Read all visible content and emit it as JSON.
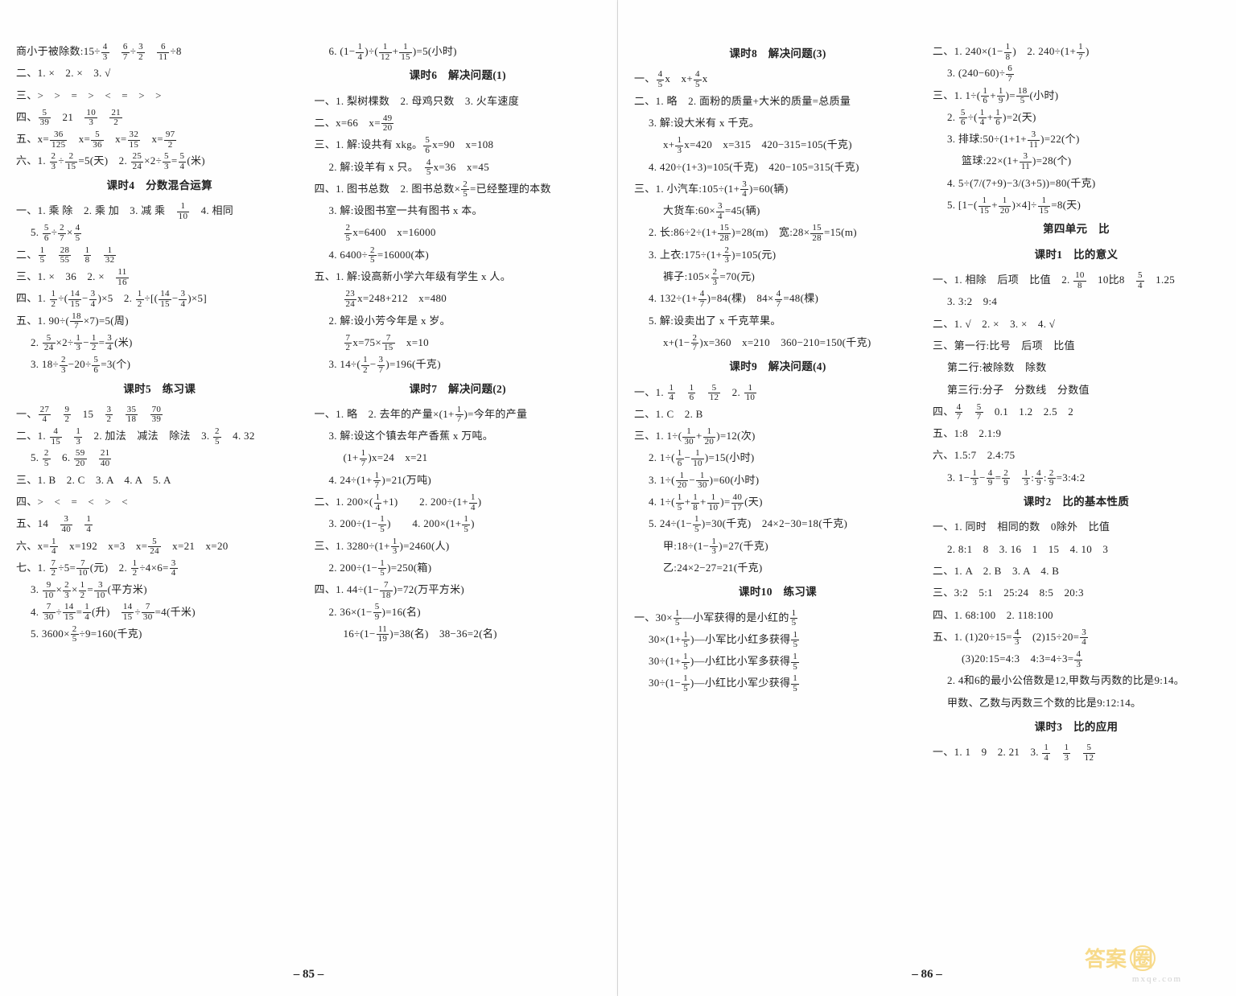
{
  "pageLeft": {
    "number": "– 85 –"
  },
  "pageRight": {
    "number": "– 86 –"
  },
  "watermark": {
    "brand": "答案",
    "circle": "圈",
    "url": "mxqe.com"
  },
  "col1": [
    {
      "t": "商小于被除数:15÷4/3　6/7÷3/2　6/11÷8"
    },
    {
      "t": "二、1. ×　2. ×　3. √"
    },
    {
      "t": "三、>　>　=　>　<　=　>　>"
    },
    {
      "t": "四、5/39　21　10/3　21/2"
    },
    {
      "t": "五、x=36/125　x=5/36　x=32/15　x=97/2"
    },
    {
      "t": "六、1. 2/3÷2/15=5(天)　2. 25/24×2÷5/3=5/4(米)"
    },
    {
      "t": "课时4　分数混合运算",
      "c": true
    },
    {
      "t": "一、1. 乘 除　2. 乘 加　3. 减 乘　1/10　4. 相同"
    },
    {
      "t": "5. 5/6÷2/7×4/5",
      "i": 1
    },
    {
      "t": "二、1/5　28/55　1/8　1/32"
    },
    {
      "t": "三、1. ×　36　2. ×　11/16"
    },
    {
      "t": "四、1. 1/2÷(14/15−3/4)×5　2. 1/2÷[(14/15−3/4)×5]"
    },
    {
      "t": "五、1. 90÷(18/7×7)=5(周)"
    },
    {
      "t": "2. 5/24×2÷1/3−1/2=3/4(米)",
      "i": 1
    },
    {
      "t": "3. 18÷2/3−20÷5/6=3(个)",
      "i": 1
    },
    {
      "t": "课时5　练习课",
      "c": true
    },
    {
      "t": "一、27/4　9/2　15　3/2　35/18　70/39"
    },
    {
      "t": "二、1. 4/15　1/3　2. 加法　减法　除法　3. 2/5　4. 32"
    },
    {
      "t": "5. 2/5　6. 59/20　21/40",
      "i": 1
    },
    {
      "t": "三、1. B　2. C　3. A　4. A　5. A"
    },
    {
      "t": "四、>　<　=　<　>　<"
    },
    {
      "t": "五、14　3/40　1/4"
    },
    {
      "t": "六、x=1/4　x=192　x=3　x=5/24　x=21　x=20"
    },
    {
      "t": "七、1. 7/2÷5=7/10(元)　2. 1/2÷4×6=3/4"
    },
    {
      "t": "3. 9/10×2/3×1/2=3/10(平方米)",
      "i": 1
    },
    {
      "t": "4. 7/30÷14/15=1/4(升)　14/15÷7/30=4(千米)",
      "i": 1
    },
    {
      "t": "5. 3600×2/5÷9=160(千克)",
      "i": 1
    }
  ],
  "col2": [
    {
      "t": "6. (1−1/4)÷(1/12+1/15)=5(小时)",
      "i": 1
    },
    {
      "t": "课时6　解决问题(1)",
      "c": true
    },
    {
      "t": "一、1. 梨树棵数　2. 母鸡只数　3. 火车速度"
    },
    {
      "t": "二、x=66　x=49/20"
    },
    {
      "t": "三、1. 解:设共有 xkg。5/6x=90　x=108"
    },
    {
      "t": "2. 解:设羊有 x 只。　4/5x=36　x=45",
      "i": 1
    },
    {
      "t": "四、1. 图书总数　2. 图书总数×2/5=已经整理的本数"
    },
    {
      "t": "3. 解:设图书室一共有图书 x 本。",
      "i": 1
    },
    {
      "t": "2/5x=6400　x=16000",
      "i": 2
    },
    {
      "t": "4. 6400÷2/5=16000(本)",
      "i": 1
    },
    {
      "t": "五、1. 解:设高新小学六年级有学生 x 人。"
    },
    {
      "t": "23/24x=248+212　x=480",
      "i": 2
    },
    {
      "t": "2. 解:设小芳今年是 x 岁。",
      "i": 1
    },
    {
      "t": "7/2x=75×7/15　x=10",
      "i": 2
    },
    {
      "t": "3. 14÷(1/2−3/7)=196(千克)",
      "i": 1
    },
    {
      "t": "课时7　解决问题(2)",
      "c": true
    },
    {
      "t": "一、1. 略　2. 去年的产量×(1+1/7)=今年的产量"
    },
    {
      "t": "3. 解:设这个镇去年产香蕉 x 万吨。",
      "i": 1
    },
    {
      "t": "(1+1/7)x=24　x=21",
      "i": 2
    },
    {
      "t": "4. 24÷(1+1/7)=21(万吨)",
      "i": 1
    },
    {
      "t": "二、1. 200×(1/4+1)　　2. 200÷(1+1/4)"
    },
    {
      "t": "3. 200÷(1−1/5)　　4. 200×(1+1/5)",
      "i": 1
    },
    {
      "t": "三、1. 3280÷(1+1/3)=2460(人)"
    },
    {
      "t": "2. 200÷(1−1/5)=250(箱)",
      "i": 1
    },
    {
      "t": "四、1. 44÷(1−7/18)=72(万平方米)"
    },
    {
      "t": "2. 36×(1−5/9)=16(名)",
      "i": 1
    },
    {
      "t": "16÷(1−11/19)=38(名)　38−36=2(名)",
      "i": 2
    }
  ],
  "col3": [
    {
      "t": "课时8　解决问题(3)",
      "c": true
    },
    {
      "t": "一、4/5x　x+4/5x"
    },
    {
      "t": "二、1. 略　2. 面粉的质量+大米的质量=总质量"
    },
    {
      "t": "3. 解:设大米有 x 千克。",
      "i": 1
    },
    {
      "t": "x+1/3x=420　x=315　420−315=105(千克)",
      "i": 2
    },
    {
      "t": "4. 420÷(1+3)=105(千克)　420−105=315(千克)",
      "i": 1
    },
    {
      "t": "三、1. 小汽车:105÷(1+3/4)=60(辆)"
    },
    {
      "t": "大货车:60×3/4=45(辆)",
      "i": 2
    },
    {
      "t": "2. 长:86÷2÷(1+15/28)=28(m)　宽:28×15/28=15(m)",
      "i": 1
    },
    {
      "t": "3. 上衣:175÷(1+2/3)=105(元)",
      "i": 1
    },
    {
      "t": "裤子:105×2/3=70(元)",
      "i": 2
    },
    {
      "t": "4. 132÷(1+4/7)=84(棵)　84×4/7=48(棵)",
      "i": 1
    },
    {
      "t": "5. 解:设卖出了 x 千克苹果。",
      "i": 1
    },
    {
      "t": "x+(1−2/7)x=360　x=210　360−210=150(千克)",
      "i": 2
    },
    {
      "t": "课时9　解决问题(4)",
      "c": true
    },
    {
      "t": "一、1. 1/4　1/6　5/12　2. 1/10"
    },
    {
      "t": "二、1. C　2. B"
    },
    {
      "t": "三、1. 1÷(1/30+1/20)=12(次)"
    },
    {
      "t": "2. 1÷(1/6−1/10)=15(小时)",
      "i": 1
    },
    {
      "t": "3. 1÷(1/20−1/30)=60(小时)",
      "i": 1
    },
    {
      "t": "4. 1÷(1/5+1/8+1/10)=40/17(天)",
      "i": 1
    },
    {
      "t": "5. 24÷(1−1/5)=30(千克)　24×2−30=18(千克)",
      "i": 1
    },
    {
      "t": "甲:18÷(1−1/3)=27(千克)",
      "i": 2
    },
    {
      "t": "乙:24×2−27=21(千克)",
      "i": 2
    },
    {
      "t": "课时10　练习课",
      "c": true
    },
    {
      "t": "一、30×1/5—小军获得的是小红的1/5"
    },
    {
      "t": "30×(1+1/5)—小军比小红多获得1/5",
      "i": 1
    },
    {
      "t": "30÷(1+1/5)—小红比小军多获得1/5",
      "i": 1
    },
    {
      "t": "30÷(1−1/5)—小红比小军少获得1/5",
      "i": 1
    }
  ],
  "col4": [
    {
      "t": "二、1. 240×(1−1/8)　2. 240÷(1+1/7)"
    },
    {
      "t": "3. (240−60)÷6/7",
      "i": 1
    },
    {
      "t": "三、1. 1÷(1/6+1/9)=18/5(小时)"
    },
    {
      "t": "2. 5/6÷(1/4+1/6)=2(天)",
      "i": 1
    },
    {
      "t": "3. 排球:50÷(1+1+3/11)=22(个)",
      "i": 1
    },
    {
      "t": "篮球:22×(1+3/11)=28(个)",
      "i": 2
    },
    {
      "t": "4. 5÷(7/(7+9)−3/(3+5))=80(千克)",
      "i": 1
    },
    {
      "t": "5. [1−(1/15+1/20)×4]÷1/15=8(天)",
      "i": 1
    },
    {
      "t": "第四单元　比",
      "c": true
    },
    {
      "t": "课时1　比的意义",
      "c": true
    },
    {
      "t": "一、1. 相除　后项　比值　2. 10/8　10比8　5/4　1.25"
    },
    {
      "t": "3. 3:2　9:4",
      "i": 1
    },
    {
      "t": "二、1. √　2. ×　3. ×　4. √"
    },
    {
      "t": "三、第一行:比号　后项　比值"
    },
    {
      "t": "第二行:被除数　除数",
      "i": 1
    },
    {
      "t": "第三行:分子　分数线　分数值",
      "i": 1
    },
    {
      "t": "四、4/7　5/7　0.1　1.2　2.5　2"
    },
    {
      "t": "五、1:8　2.1:9"
    },
    {
      "t": "六、1.5:7　2.4:75"
    },
    {
      "t": "3. 1−1/3−4/9=2/9　1/3:4/9:2/9=3:4:2",
      "i": 1
    },
    {
      "t": "课时2　比的基本性质",
      "c": true
    },
    {
      "t": "一、1. 同时　相同的数　0除外　比值"
    },
    {
      "t": "2. 8:1　8　3. 16　1　15　4. 10　3",
      "i": 1
    },
    {
      "t": "二、1. A　2. B　3. A　4. B"
    },
    {
      "t": "三、3:2　5:1　25:24　8:5　20:3"
    },
    {
      "t": "四、1. 68:100　2. 118:100"
    },
    {
      "t": "五、1. (1)20÷15=4/3　(2)15÷20=3/4"
    },
    {
      "t": "(3)20:15=4:3　4:3=4÷3=4/3",
      "i": 2
    },
    {
      "t": "2. 4和6的最小公倍数是12,甲数与丙数的比是9:14。",
      "i": 1
    },
    {
      "t": "甲数、乙数与丙数三个数的比是9:12:14。",
      "i": 1
    },
    {
      "t": "课时3　比的应用",
      "c": true
    },
    {
      "t": "一、1. 1　9　2. 21　3. 1/4　1/3　5/12"
    }
  ]
}
